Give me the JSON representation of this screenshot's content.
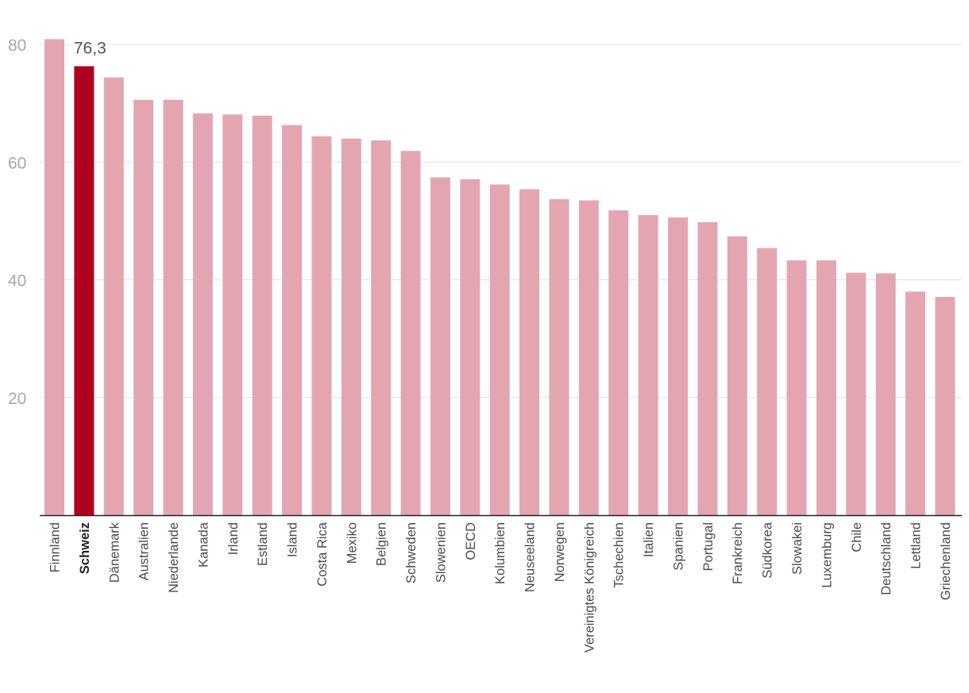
{
  "chart_data": {
    "type": "bar",
    "title": "",
    "xlabel": "",
    "ylabel": "",
    "ylim": [
      0,
      80
    ],
    "yticks": [
      20,
      40,
      60,
      80
    ],
    "grid": true,
    "highlight_category": "Schweiz",
    "highlight_label": "76,3",
    "categories": [
      "Finnland",
      "Schweiz",
      "Dänemark",
      "Australien",
      "Niederlande",
      "Kanada",
      "Irland",
      "Estland",
      "Island",
      "Costa Rica",
      "Mexiko",
      "Belgien",
      "Schweden",
      "Slowenien",
      "OECD",
      "Kolumbien",
      "Neuseeland",
      "Norwegen",
      "Vereinigtes Königreich",
      "Tschechien",
      "Italien",
      "Spanien",
      "Portugal",
      "Frankreich",
      "Südkorea",
      "Slowakei",
      "Luxemburg",
      "Chile",
      "Deutschland",
      "Lettland",
      "Griechenland"
    ],
    "values": [
      80.9,
      76.3,
      74.4,
      70.6,
      70.6,
      68.3,
      68.1,
      67.9,
      66.3,
      64.4,
      64.0,
      63.7,
      61.9,
      57.4,
      57.1,
      56.2,
      55.4,
      53.7,
      53.5,
      51.8,
      51.0,
      50.6,
      49.8,
      47.4,
      45.4,
      43.3,
      43.3,
      41.2,
      41.1,
      38.0,
      37.1
    ],
    "colors": {
      "bar": "#e3a6b0",
      "highlight": "#b00020",
      "grid": "#e0e0e0",
      "tick": "#a8a8a8",
      "label": "#4a4a4a",
      "axis": "#222222"
    }
  }
}
